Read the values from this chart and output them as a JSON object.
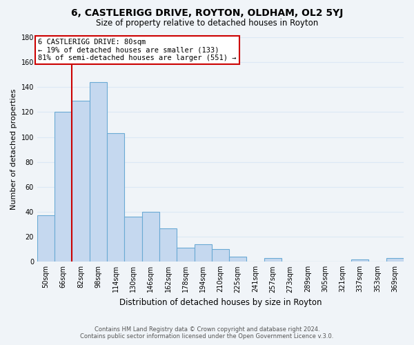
{
  "title": "6, CASTLERIGG DRIVE, ROYTON, OLDHAM, OL2 5YJ",
  "subtitle": "Size of property relative to detached houses in Royton",
  "xlabel": "Distribution of detached houses by size in Royton",
  "ylabel": "Number of detached properties",
  "footer_line1": "Contains HM Land Registry data © Crown copyright and database right 2024.",
  "footer_line2": "Contains public sector information licensed under the Open Government Licence v.3.0.",
  "bar_labels": [
    "50sqm",
    "66sqm",
    "82sqm",
    "98sqm",
    "114sqm",
    "130sqm",
    "146sqm",
    "162sqm",
    "178sqm",
    "194sqm",
    "210sqm",
    "225sqm",
    "241sqm",
    "257sqm",
    "273sqm",
    "289sqm",
    "305sqm",
    "321sqm",
    "337sqm",
    "353sqm",
    "369sqm"
  ],
  "bar_values": [
    37,
    120,
    129,
    144,
    103,
    36,
    40,
    27,
    11,
    14,
    10,
    4,
    0,
    3,
    0,
    0,
    0,
    0,
    2,
    0,
    3
  ],
  "bar_color": "#c5d8ef",
  "bar_edge_color": "#6aaad4",
  "vline_x_index": 1.5,
  "annotation_title": "6 CASTLERIGG DRIVE: 80sqm",
  "annotation_line2": "← 19% of detached houses are smaller (133)",
  "annotation_line3": "81% of semi-detached houses are larger (551) →",
  "annotation_box_edge": "#cc0000",
  "vline_color": "#cc0000",
  "ylim": [
    0,
    180
  ],
  "yticks": [
    0,
    20,
    40,
    60,
    80,
    100,
    120,
    140,
    160,
    180
  ],
  "background_color": "#f0f4f8",
  "grid_color": "#dce8f5",
  "title_fontsize": 10,
  "subtitle_fontsize": 8.5,
  "tick_fontsize": 7,
  "ylabel_fontsize": 8,
  "xlabel_fontsize": 8.5,
  "footer_fontsize": 6.0
}
